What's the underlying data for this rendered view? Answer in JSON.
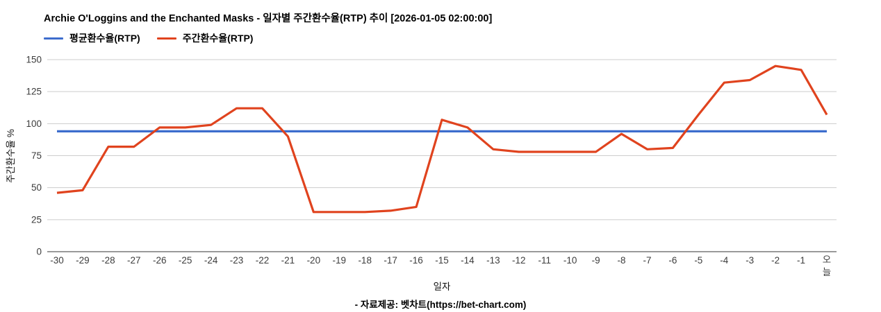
{
  "header": {
    "title": "Archie O'Loggins and the Enchanted Masks - 일자별 주간환수율(RTP) 추이 [2026-01-05 02:00:00]"
  },
  "legend": {
    "items": [
      {
        "label": "평균환수율(RTP)",
        "color": "#3d6dcd"
      },
      {
        "label": "주간환수율(RTP)",
        "color": "#e0431e"
      }
    ]
  },
  "footer": {
    "credit": "- 자료제공: 벳차트(https://bet-chart.com)"
  },
  "chart_data": {
    "type": "line",
    "title": "Archie O'Loggins and the Enchanted Masks - 일자별 주간환수율(RTP) 추이 [2026-01-05 02:00:00]",
    "xlabel": "일자",
    "ylabel": "주간환수율 %",
    "ylim": [
      0,
      150
    ],
    "yticks": [
      0,
      25,
      50,
      75,
      100,
      125,
      150
    ],
    "grid": true,
    "legend_position": "top",
    "categories": [
      "-30",
      "-29",
      "-28",
      "-27",
      "-26",
      "-25",
      "-24",
      "-23",
      "-22",
      "-21",
      "-20",
      "-19",
      "-18",
      "-17",
      "-16",
      "-15",
      "-14",
      "-13",
      "-12",
      "-11",
      "-10",
      "-9",
      "-8",
      "-7",
      "-6",
      "-5",
      "-4",
      "-3",
      "-2",
      "-1",
      "오늘"
    ],
    "series": [
      {
        "name": "평균환수율(RTP)",
        "color": "#3d6dcd",
        "constant_value": 94
      },
      {
        "name": "주간환수율(RTP)",
        "color": "#e0431e",
        "values": [
          46,
          48,
          82,
          82,
          97,
          97,
          99,
          112,
          112,
          90,
          31,
          31,
          31,
          32,
          35,
          103,
          97,
          80,
          78,
          78,
          78,
          78,
          92,
          80,
          81,
          107,
          132,
          134,
          145,
          142,
          107
        ]
      }
    ]
  }
}
